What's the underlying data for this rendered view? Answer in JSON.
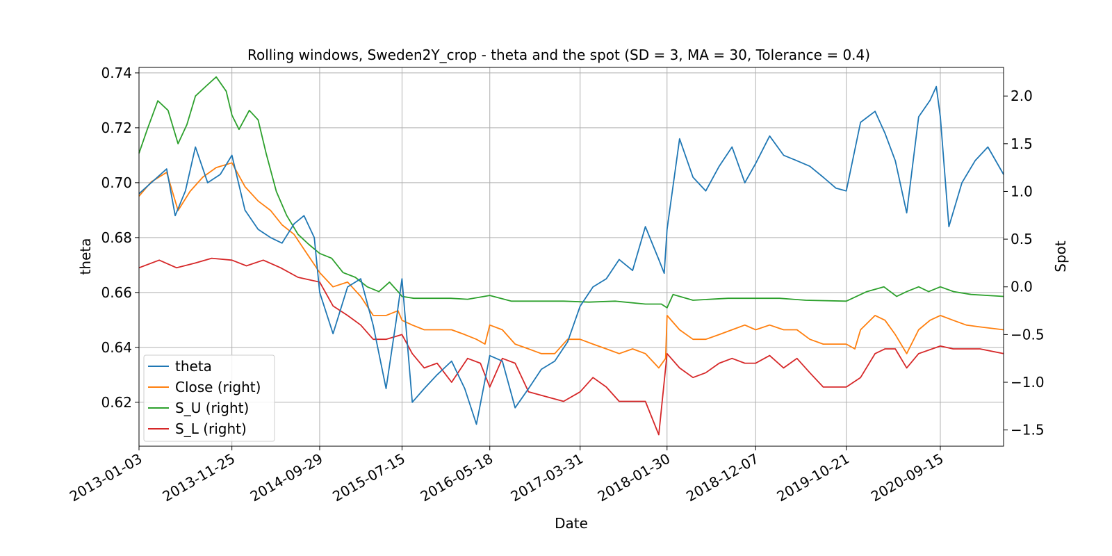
{
  "chart_data": {
    "type": "line",
    "title": "Rolling windows, Sweden2Y_crop - theta and the spot (SD = 3, MA = 30, Tolerance  = 0.4)",
    "xlabel": "Date",
    "ylabel_left": "theta",
    "ylabel_right": "Spot",
    "xlim": [
      "2013-01-03",
      "2021-04-25"
    ],
    "ylim_left": [
      0.604,
      0.742
    ],
    "ylim_right": [
      -1.67,
      2.3
    ],
    "x_ticks": [
      "2013-01-03",
      "2013-11-25",
      "2014-09-29",
      "2015-07-15",
      "2016-05-18",
      "2017-03-31",
      "2018-01-30",
      "2018-12-07",
      "2019-10-21",
      "2020-09-15"
    ],
    "y_ticks_left": [
      "0.62",
      "0.64",
      "0.66",
      "0.68",
      "0.70",
      "0.72",
      "0.74"
    ],
    "y_ticks_right": [
      "−1.5",
      "−1.0",
      "−0.5",
      "0.0",
      "0.5",
      "1.0",
      "1.5",
      "2.0"
    ],
    "y_tick_values_left": [
      0.62,
      0.64,
      0.66,
      0.68,
      0.7,
      0.72,
      0.74
    ],
    "y_tick_values_right": [
      -1.5,
      -1.0,
      -0.5,
      0.0,
      0.5,
      1.0,
      1.5,
      2.0
    ],
    "grid": true,
    "legend_position": "lower-left",
    "series": [
      {
        "name": "theta",
        "axis": "left",
        "color": "#1f77b4",
        "x": [
          "2013-01-03",
          "2013-02-15",
          "2013-04-10",
          "2013-05-10",
          "2013-06-15",
          "2013-07-20",
          "2013-09-01",
          "2013-10-15",
          "2013-11-25",
          "2014-01-10",
          "2014-02-25",
          "2014-04-10",
          "2014-05-20",
          "2014-07-01",
          "2014-08-05",
          "2014-09-10",
          "2014-09-29",
          "2014-11-15",
          "2015-01-05",
          "2015-02-20",
          "2015-04-05",
          "2015-05-20",
          "2015-06-25",
          "2015-07-15",
          "2015-08-20",
          "2015-10-01",
          "2015-11-15",
          "2016-01-05",
          "2016-02-20",
          "2016-04-01",
          "2016-05-18",
          "2016-07-01",
          "2016-08-15",
          "2016-10-01",
          "2016-11-15",
          "2017-01-01",
          "2017-02-15",
          "2017-03-31",
          "2017-05-15",
          "2017-07-01",
          "2017-08-15",
          "2017-10-01",
          "2017-11-15",
          "2018-01-01",
          "2018-01-20",
          "2018-01-30",
          "2018-03-15",
          "2018-05-01",
          "2018-06-15",
          "2018-08-01",
          "2018-09-15",
          "2018-10-30",
          "2018-12-07",
          "2019-01-25",
          "2019-03-15",
          "2019-05-01",
          "2019-06-15",
          "2019-08-01",
          "2019-09-15",
          "2019-10-21",
          "2019-12-10",
          "2020-01-30",
          "2020-03-05",
          "2020-04-10",
          "2020-05-20",
          "2020-07-01",
          "2020-08-10",
          "2020-09-01",
          "2020-09-15",
          "2020-10-15",
          "2020-11-30",
          "2021-01-15",
          "2021-03-01",
          "2021-04-25"
        ],
        "y": [
          0.696,
          0.7,
          0.705,
          0.688,
          0.697,
          0.713,
          0.7,
          0.703,
          0.71,
          0.69,
          0.683,
          0.68,
          0.678,
          0.685,
          0.688,
          0.68,
          0.66,
          0.645,
          0.662,
          0.665,
          0.648,
          0.625,
          0.65,
          0.665,
          0.62,
          0.625,
          0.63,
          0.635,
          0.625,
          0.612,
          0.637,
          0.635,
          0.618,
          0.625,
          0.632,
          0.635,
          0.642,
          0.655,
          0.662,
          0.665,
          0.672,
          0.668,
          0.684,
          0.672,
          0.667,
          0.683,
          0.716,
          0.702,
          0.697,
          0.706,
          0.713,
          0.7,
          0.707,
          0.717,
          0.71,
          0.708,
          0.706,
          0.702,
          0.698,
          0.697,
          0.722,
          0.726,
          0.718,
          0.708,
          0.689,
          0.724,
          0.73,
          0.735,
          0.724,
          0.684,
          0.7,
          0.708,
          0.713,
          0.703
        ]
      },
      {
        "name": "Close (right)",
        "axis": "right",
        "color": "#ff7f0e",
        "x": [
          "2013-01-03",
          "2013-02-15",
          "2013-04-10",
          "2013-05-20",
          "2013-07-01",
          "2013-08-15",
          "2013-10-01",
          "2013-11-25",
          "2014-01-10",
          "2014-02-25",
          "2014-04-10",
          "2014-05-20",
          "2014-07-01",
          "2014-08-15",
          "2014-09-29",
          "2014-11-15",
          "2015-01-05",
          "2015-02-20",
          "2015-04-05",
          "2015-05-20",
          "2015-07-01",
          "2015-07-15",
          "2015-08-20",
          "2015-10-01",
          "2015-11-15",
          "2016-01-05",
          "2016-02-20",
          "2016-04-01",
          "2016-05-01",
          "2016-05-18",
          "2016-07-01",
          "2016-08-15",
          "2016-10-01",
          "2016-11-15",
          "2017-01-01",
          "2017-02-15",
          "2017-03-31",
          "2017-05-15",
          "2017-07-01",
          "2017-08-15",
          "2017-10-01",
          "2017-11-15",
          "2018-01-01",
          "2018-01-25",
          "2018-01-30",
          "2018-03-15",
          "2018-05-01",
          "2018-06-15",
          "2018-08-01",
          "2018-09-15",
          "2018-10-30",
          "2018-12-07",
          "2019-01-25",
          "2019-03-15",
          "2019-05-01",
          "2019-06-15",
          "2019-08-01",
          "2019-09-15",
          "2019-10-21",
          "2019-11-20",
          "2019-12-10",
          "2020-01-30",
          "2020-03-05",
          "2020-04-10",
          "2020-05-20",
          "2020-07-01",
          "2020-08-10",
          "2020-09-15",
          "2020-10-30",
          "2020-12-15",
          "2021-02-01",
          "2021-04-25"
        ],
        "y": [
          0.95,
          1.1,
          1.2,
          0.8,
          1.0,
          1.15,
          1.25,
          1.3,
          1.05,
          0.9,
          0.8,
          0.65,
          0.55,
          0.35,
          0.15,
          0.0,
          0.05,
          -0.1,
          -0.3,
          -0.3,
          -0.25,
          -0.35,
          -0.4,
          -0.45,
          -0.45,
          -0.45,
          -0.5,
          -0.55,
          -0.6,
          -0.4,
          -0.45,
          -0.6,
          -0.65,
          -0.7,
          -0.7,
          -0.55,
          -0.55,
          -0.6,
          -0.65,
          -0.7,
          -0.65,
          -0.7,
          -0.85,
          -0.75,
          -0.3,
          -0.45,
          -0.55,
          -0.55,
          -0.5,
          -0.45,
          -0.4,
          -0.45,
          -0.4,
          -0.45,
          -0.45,
          -0.55,
          -0.6,
          -0.6,
          -0.6,
          -0.65,
          -0.45,
          -0.3,
          -0.35,
          -0.5,
          -0.7,
          -0.45,
          -0.35,
          -0.3,
          -0.35,
          -0.4,
          -0.42,
          -0.45
        ]
      },
      {
        "name": "S_U (right)",
        "axis": "right",
        "color": "#2ca02c",
        "x": [
          "2013-01-03",
          "2013-02-01",
          "2013-03-10",
          "2013-04-15",
          "2013-05-20",
          "2013-06-20",
          "2013-07-20",
          "2013-08-25",
          "2013-10-01",
          "2013-11-05",
          "2013-11-25",
          "2013-12-20",
          "2014-01-25",
          "2014-02-25",
          "2014-03-25",
          "2014-04-30",
          "2014-06-05",
          "2014-07-15",
          "2014-08-20",
          "2014-09-29",
          "2014-11-10",
          "2014-12-20",
          "2015-02-01",
          "2015-03-15",
          "2015-04-25",
          "2015-06-01",
          "2015-07-01",
          "2015-07-15",
          "2015-08-25",
          "2015-10-15",
          "2016-01-01",
          "2016-03-01",
          "2016-05-18",
          "2016-08-01",
          "2016-11-01",
          "2017-02-01",
          "2017-05-01",
          "2017-08-01",
          "2017-11-15",
          "2018-01-10",
          "2018-01-30",
          "2018-02-20",
          "2018-05-01",
          "2018-09-01",
          "2018-12-07",
          "2019-03-01",
          "2019-06-01",
          "2019-10-21",
          "2020-01-01",
          "2020-03-01",
          "2020-04-15",
          "2020-05-20",
          "2020-07-01",
          "2020-08-05",
          "2020-09-15",
          "2020-11-01",
          "2021-01-01",
          "2021-04-25"
        ],
        "y": [
          1.4,
          1.65,
          1.95,
          1.85,
          1.5,
          1.7,
          2.0,
          2.1,
          2.2,
          2.05,
          1.8,
          1.65,
          1.85,
          1.75,
          1.4,
          1.0,
          0.75,
          0.55,
          0.45,
          0.35,
          0.3,
          0.15,
          0.1,
          0.0,
          -0.05,
          0.05,
          -0.05,
          -0.1,
          -0.12,
          -0.12,
          -0.12,
          -0.13,
          -0.09,
          -0.15,
          -0.15,
          -0.15,
          -0.16,
          -0.15,
          -0.18,
          -0.18,
          -0.22,
          -0.08,
          -0.14,
          -0.12,
          -0.12,
          -0.12,
          -0.14,
          -0.15,
          -0.05,
          0.0,
          -0.1,
          -0.05,
          0.0,
          -0.05,
          0.0,
          -0.05,
          -0.08,
          -0.1
        ]
      },
      {
        "name": "S_L (right)",
        "axis": "right",
        "color": "#d62728",
        "x": [
          "2013-01-03",
          "2013-03-15",
          "2013-05-15",
          "2013-07-20",
          "2013-09-15",
          "2013-11-25",
          "2014-01-15",
          "2014-03-15",
          "2014-05-15",
          "2014-07-15",
          "2014-09-29",
          "2014-11-15",
          "2015-01-05",
          "2015-02-20",
          "2015-04-05",
          "2015-05-20",
          "2015-07-15",
          "2015-08-20",
          "2015-10-01",
          "2015-11-15",
          "2016-01-05",
          "2016-03-01",
          "2016-04-15",
          "2016-05-18",
          "2016-07-01",
          "2016-08-15",
          "2016-10-01",
          "2016-12-01",
          "2017-02-01",
          "2017-03-31",
          "2017-05-15",
          "2017-07-01",
          "2017-08-15",
          "2017-10-01",
          "2017-11-15",
          "2018-01-01",
          "2018-01-30",
          "2018-03-15",
          "2018-05-01",
          "2018-06-15",
          "2018-08-01",
          "2018-09-15",
          "2018-10-30",
          "2018-12-07",
          "2019-01-25",
          "2019-03-15",
          "2019-05-01",
          "2019-06-15",
          "2019-08-01",
          "2019-10-21",
          "2019-12-10",
          "2020-01-30",
          "2020-03-05",
          "2020-04-10",
          "2020-05-20",
          "2020-07-01",
          "2020-09-15",
          "2020-10-30",
          "2020-12-15",
          "2021-02-01",
          "2021-04-25"
        ],
        "y": [
          0.2,
          0.28,
          0.2,
          0.25,
          0.3,
          0.28,
          0.22,
          0.28,
          0.2,
          0.1,
          0.05,
          -0.2,
          -0.3,
          -0.4,
          -0.55,
          -0.55,
          -0.5,
          -0.7,
          -0.85,
          -0.8,
          -1.0,
          -0.75,
          -0.8,
          -1.05,
          -0.75,
          -0.8,
          -1.1,
          -1.15,
          -1.2,
          -1.1,
          -0.95,
          -1.05,
          -1.2,
          -1.2,
          -1.2,
          -1.55,
          -0.7,
          -0.85,
          -0.95,
          -0.9,
          -0.8,
          -0.75,
          -0.8,
          -0.8,
          -0.72,
          -0.85,
          -0.75,
          -0.9,
          -1.05,
          -1.05,
          -0.95,
          -0.7,
          -0.65,
          -0.65,
          -0.85,
          -0.7,
          -0.62,
          -0.65,
          -0.65,
          -0.65,
          -0.7
        ]
      }
    ]
  }
}
